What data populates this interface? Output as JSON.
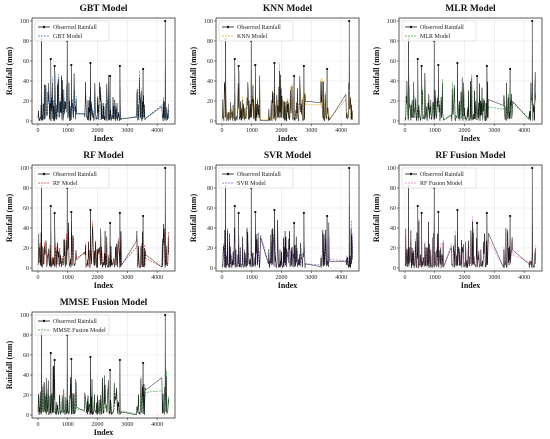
{
  "colors": {
    "observed": "#111111",
    "axis": "#333333",
    "grid": "#e6e6e6"
  },
  "chart_data": [
    {
      "type": "line",
      "title": "GBT Model",
      "xlabel": "Index",
      "ylabel": "Rainfall (mm)",
      "xlim": [
        -200,
        4600
      ],
      "ylim": [
        -3,
        103
      ],
      "xticks": [
        0,
        1000,
        2000,
        3000,
        4000
      ],
      "yticks": [
        0,
        20,
        40,
        60,
        80,
        100
      ],
      "grid": true,
      "legend": "top-left",
      "color": "#2f6fb5",
      "series": [
        {
          "name": "Observed Rainfall",
          "style": "solid-marker"
        },
        {
          "name": "GBT Model",
          "style": "dashed"
        }
      ],
      "peaks": [
        {
          "x": 120,
          "y": 82
        },
        {
          "x": 430,
          "y": 62
        },
        {
          "x": 560,
          "y": 55
        },
        {
          "x": 980,
          "y": 80
        },
        {
          "x": 1120,
          "y": 56
        },
        {
          "x": 1760,
          "y": 58
        },
        {
          "x": 2420,
          "y": 45
        },
        {
          "x": 2750,
          "y": 55
        },
        {
          "x": 3530,
          "y": 52
        },
        {
          "x": 4270,
          "y": 100
        }
      ],
      "gaps": [
        [
          1300,
          1550
        ],
        [
          2800,
          3300
        ],
        [
          3620,
          4150
        ]
      ]
    },
    {
      "type": "line",
      "title": "KNN Model",
      "xlabel": "Index",
      "ylabel": "Rainfall (mm)",
      "xlim": [
        -200,
        4600
      ],
      "ylim": [
        -3,
        103
      ],
      "xticks": [
        0,
        1000,
        2000,
        3000,
        4000
      ],
      "yticks": [
        0,
        20,
        40,
        60,
        80,
        100
      ],
      "grid": true,
      "legend": "top-left",
      "color": "#e3a21a",
      "series": [
        {
          "name": "Observed Rainfall",
          "style": "solid-marker"
        },
        {
          "name": "KNN Model",
          "style": "dashed"
        }
      ],
      "peaks": [
        {
          "x": 120,
          "y": 82
        },
        {
          "x": 430,
          "y": 62
        },
        {
          "x": 560,
          "y": 55
        },
        {
          "x": 980,
          "y": 80
        },
        {
          "x": 1120,
          "y": 56
        },
        {
          "x": 1760,
          "y": 58
        },
        {
          "x": 2420,
          "y": 45
        },
        {
          "x": 2750,
          "y": 55
        },
        {
          "x": 3530,
          "y": 52
        },
        {
          "x": 4270,
          "y": 100
        }
      ],
      "gaps": [
        [
          1300,
          1550
        ],
        [
          2800,
          3300
        ],
        [
          3620,
          4150
        ]
      ]
    },
    {
      "type": "line",
      "title": "MLR Model",
      "xlabel": "Index",
      "ylabel": "Rainfall (mm)",
      "xlim": [
        -200,
        4600
      ],
      "ylim": [
        -3,
        103
      ],
      "xticks": [
        0,
        1000,
        2000,
        3000,
        4000
      ],
      "yticks": [
        0,
        20,
        40,
        60,
        80,
        100
      ],
      "grid": true,
      "legend": "top-left",
      "color": "#2e9a3a",
      "series": [
        {
          "name": "Observed Rainfall",
          "style": "solid-marker"
        },
        {
          "name": "MLR Model",
          "style": "dashed"
        }
      ],
      "peaks": [
        {
          "x": 120,
          "y": 82
        },
        {
          "x": 430,
          "y": 62
        },
        {
          "x": 560,
          "y": 55
        },
        {
          "x": 980,
          "y": 80
        },
        {
          "x": 1120,
          "y": 56
        },
        {
          "x": 1760,
          "y": 58
        },
        {
          "x": 2420,
          "y": 45
        },
        {
          "x": 2750,
          "y": 55
        },
        {
          "x": 3530,
          "y": 52
        },
        {
          "x": 4270,
          "y": 100
        }
      ],
      "gaps": [
        [
          1300,
          1550
        ],
        [
          2800,
          3300
        ],
        [
          3620,
          4150
        ]
      ]
    },
    {
      "type": "line",
      "title": "RF Model",
      "xlabel": "Index",
      "ylabel": "Rainfall (mm)",
      "xlim": [
        -200,
        4600
      ],
      "ylim": [
        -3,
        103
      ],
      "xticks": [
        0,
        1000,
        2000,
        3000,
        4000
      ],
      "yticks": [
        0,
        20,
        40,
        60,
        80,
        100
      ],
      "grid": true,
      "legend": "top-left",
      "color": "#d23a2a",
      "series": [
        {
          "name": "Observed Rainfall",
          "style": "solid-marker"
        },
        {
          "name": "RF Model",
          "style": "dashed"
        }
      ],
      "peaks": [
        {
          "x": 120,
          "y": 82
        },
        {
          "x": 430,
          "y": 62
        },
        {
          "x": 560,
          "y": 55
        },
        {
          "x": 980,
          "y": 80
        },
        {
          "x": 1120,
          "y": 56
        },
        {
          "x": 1760,
          "y": 58
        },
        {
          "x": 2420,
          "y": 45
        },
        {
          "x": 2750,
          "y": 55
        },
        {
          "x": 3530,
          "y": 52
        },
        {
          "x": 4270,
          "y": 100
        }
      ],
      "gaps": [
        [
          1300,
          1550
        ],
        [
          2800,
          3300
        ],
        [
          3620,
          4150
        ]
      ]
    },
    {
      "type": "line",
      "title": "SVR Model",
      "xlabel": "Index",
      "ylabel": "Rainfall (mm)",
      "xlim": [
        -200,
        4600
      ],
      "ylim": [
        -3,
        103
      ],
      "xticks": [
        0,
        1000,
        2000,
        3000,
        4000
      ],
      "yticks": [
        0,
        20,
        40,
        60,
        80,
        100
      ],
      "grid": true,
      "legend": "top-left",
      "color": "#8a4fc2",
      "series": [
        {
          "name": "Observed Rainfall",
          "style": "solid-marker"
        },
        {
          "name": "SVR Model",
          "style": "dashed"
        }
      ],
      "peaks": [
        {
          "x": 120,
          "y": 82
        },
        {
          "x": 430,
          "y": 62
        },
        {
          "x": 560,
          "y": 55
        },
        {
          "x": 980,
          "y": 80
        },
        {
          "x": 1120,
          "y": 56
        },
        {
          "x": 1760,
          "y": 58
        },
        {
          "x": 2420,
          "y": 45
        },
        {
          "x": 2750,
          "y": 55
        },
        {
          "x": 3530,
          "y": 52
        },
        {
          "x": 4270,
          "y": 100
        }
      ],
      "gaps": [
        [
          1300,
          1550
        ],
        [
          2800,
          3300
        ],
        [
          3620,
          4150
        ]
      ]
    },
    {
      "type": "line",
      "title": "RF Fusion Model",
      "xlabel": "Index",
      "ylabel": "Rainfall (mm)",
      "xlim": [
        -200,
        4600
      ],
      "ylim": [
        -3,
        103
      ],
      "xticks": [
        0,
        1000,
        2000,
        3000,
        4000
      ],
      "yticks": [
        0,
        20,
        40,
        60,
        80,
        100
      ],
      "grid": true,
      "legend": "top-left",
      "color": "#e377c2",
      "series": [
        {
          "name": "Observed Rainfall",
          "style": "solid-marker"
        },
        {
          "name": "RF Fusion Model",
          "style": "dashed"
        }
      ],
      "peaks": [
        {
          "x": 120,
          "y": 82
        },
        {
          "x": 430,
          "y": 62
        },
        {
          "x": 560,
          "y": 55
        },
        {
          "x": 980,
          "y": 80
        },
        {
          "x": 1120,
          "y": 56
        },
        {
          "x": 1760,
          "y": 58
        },
        {
          "x": 2420,
          "y": 45
        },
        {
          "x": 2750,
          "y": 55
        },
        {
          "x": 3530,
          "y": 52
        },
        {
          "x": 4270,
          "y": 100
        }
      ],
      "gaps": [
        [
          1300,
          1550
        ],
        [
          2800,
          3300
        ],
        [
          3620,
          4150
        ]
      ]
    },
    {
      "type": "line",
      "title": "MMSE Fusion Model",
      "xlabel": "Index",
      "ylabel": "Rainfall (mm)",
      "xlim": [
        -200,
        4600
      ],
      "ylim": [
        -3,
        103
      ],
      "xticks": [
        0,
        1000,
        2000,
        3000,
        4000
      ],
      "yticks": [
        0,
        20,
        40,
        60,
        80,
        100
      ],
      "grid": true,
      "legend": "top-left",
      "color": "#2e9a3a",
      "series": [
        {
          "name": "Observed Rainfall",
          "style": "solid-marker"
        },
        {
          "name": "MMSE Fusion Model",
          "style": "dashed"
        }
      ],
      "peaks": [
        {
          "x": 120,
          "y": 82
        },
        {
          "x": 430,
          "y": 62
        },
        {
          "x": 560,
          "y": 55
        },
        {
          "x": 980,
          "y": 80
        },
        {
          "x": 1120,
          "y": 56
        },
        {
          "x": 1760,
          "y": 58
        },
        {
          "x": 2420,
          "y": 45
        },
        {
          "x": 2750,
          "y": 55
        },
        {
          "x": 3530,
          "y": 52
        },
        {
          "x": 4270,
          "y": 100
        }
      ],
      "gaps": [
        [
          1300,
          1550
        ],
        [
          2800,
          3300
        ],
        [
          3620,
          4150
        ]
      ]
    }
  ]
}
